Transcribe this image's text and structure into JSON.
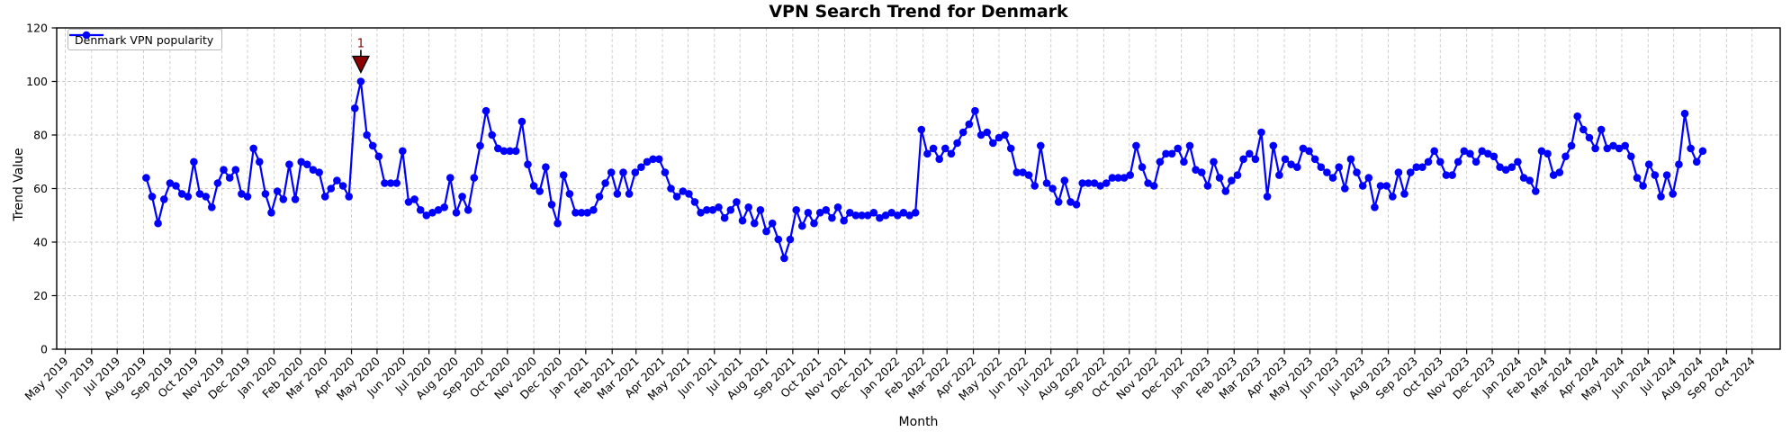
{
  "title": "VPN Search Trend for Denmark",
  "axes": {
    "xlabel": "Month",
    "ylabel": "Trend Value"
  },
  "legend": {
    "label": "Denmark VPN popularity",
    "position": "upper left",
    "marker_icon": "blue-line-circle-marker"
  },
  "annotation": {
    "label": "1",
    "marker": "triangle-down",
    "color": "#8b0000",
    "point_index": 36,
    "value": 100
  },
  "colors": {
    "line": "#0000ff",
    "marker": "#0000ff",
    "grid": "#c9c9c9",
    "axis": "#000000",
    "annotation": "#8b0000",
    "background": "#ffffff"
  },
  "chart_data": {
    "type": "line",
    "title": "VPN Search Trend for Denmark",
    "xlabel": "Month",
    "ylabel": "Trend Value",
    "ylim": [
      0,
      120
    ],
    "yticks": [
      0,
      20,
      40,
      60,
      80,
      100,
      120
    ],
    "grid": true,
    "x_axis": {
      "start": "2019-04-21",
      "end": "2024-11-03",
      "tick_labels": [
        "May 2019",
        "Jun 2019",
        "Jul 2019",
        "Aug 2019",
        "Sep 2019",
        "Oct 2019",
        "Nov 2019",
        "Dec 2019",
        "Jan 2020",
        "Feb 2020",
        "Mar 2020",
        "Apr 2020",
        "May 2020",
        "Jun 2020",
        "Jul 2020",
        "Aug 2020",
        "Sep 2020",
        "Oct 2020",
        "Nov 2020",
        "Dec 2020",
        "Jan 2021",
        "Feb 2021",
        "Mar 2021",
        "Apr 2021",
        "May 2021",
        "Jun 2021",
        "Jul 2021",
        "Aug 2021",
        "Sep 2021",
        "Oct 2021",
        "Nov 2021",
        "Dec 2021",
        "Jan 2022",
        "Feb 2022",
        "Mar 2022",
        "Apr 2022",
        "May 2022",
        "Jun 2022",
        "Jul 2022",
        "Aug 2022",
        "Sep 2022",
        "Oct 2022",
        "Nov 2022",
        "Dec 2022",
        "Jan 2023",
        "Feb 2023",
        "Mar 2023",
        "Apr 2023",
        "May 2023",
        "Jun 2023",
        "Jul 2023",
        "Aug 2023",
        "Sep 2023",
        "Oct 2023",
        "Nov 2023",
        "Dec 2023",
        "Jan 2024",
        "Feb 2024",
        "Mar 2024",
        "Apr 2024",
        "May 2024",
        "Jun 2024",
        "Jul 2024",
        "Aug 2024",
        "Sep 2024",
        "Oct 2024"
      ]
    },
    "series": [
      {
        "name": "Denmark VPN popularity",
        "start_date": "2019-08-04",
        "interval_days": 7,
        "values": [
          64,
          57,
          47,
          56,
          62,
          61,
          58,
          57,
          70,
          58,
          57,
          53,
          62,
          67,
          64,
          67,
          58,
          57,
          75,
          70,
          58,
          51,
          59,
          56,
          69,
          56,
          70,
          69,
          67,
          66,
          57,
          60,
          63,
          61,
          57,
          90,
          100,
          80,
          76,
          72,
          62,
          62,
          62,
          74,
          55,
          56,
          52,
          50,
          51,
          52,
          53,
          64,
          51,
          57,
          52,
          64,
          76,
          89,
          80,
          75,
          74,
          74,
          74,
          85,
          69,
          61,
          59,
          68,
          54,
          47,
          65,
          58,
          51,
          51,
          51,
          52,
          57,
          62,
          66,
          58,
          66,
          58,
          66,
          68,
          70,
          71,
          71,
          66,
          60,
          57,
          59,
          58,
          55,
          51,
          52,
          52,
          53,
          49,
          52,
          55,
          48,
          53,
          47,
          52,
          44,
          47,
          41,
          34,
          41,
          52,
          46,
          51,
          47,
          51,
          52,
          49,
          53,
          48,
          51,
          50,
          50,
          50,
          51,
          49,
          50,
          51,
          50,
          51,
          50,
          51,
          82,
          73,
          75,
          71,
          75,
          73,
          77,
          81,
          84,
          89,
          80,
          81,
          77,
          79,
          80,
          75,
          66,
          66,
          65,
          61,
          76,
          62,
          60,
          55,
          63,
          55,
          54,
          62,
          62,
          62,
          61,
          62,
          64,
          64,
          64,
          65,
          76,
          68,
          62,
          61,
          70,
          73,
          73,
          75,
          70,
          76,
          67,
          66,
          61,
          70,
          64,
          59,
          63,
          65,
          71,
          73,
          71,
          81,
          57,
          76,
          65,
          71,
          69,
          68,
          75,
          74,
          71,
          68,
          66,
          64,
          68,
          60,
          71,
          66,
          61,
          64,
          53,
          61,
          61,
          57,
          66,
          58,
          66,
          68,
          68,
          70,
          74,
          70,
          65,
          65,
          70,
          74,
          73,
          70,
          74,
          73,
          72,
          68,
          67,
          68,
          70,
          64,
          63,
          59,
          74,
          73,
          65,
          66,
          72,
          76,
          87,
          82,
          79,
          75,
          82,
          75,
          76,
          75,
          76,
          72,
          64,
          61,
          69,
          65,
          57,
          65,
          58,
          69,
          88,
          75,
          70,
          74
        ]
      }
    ]
  }
}
